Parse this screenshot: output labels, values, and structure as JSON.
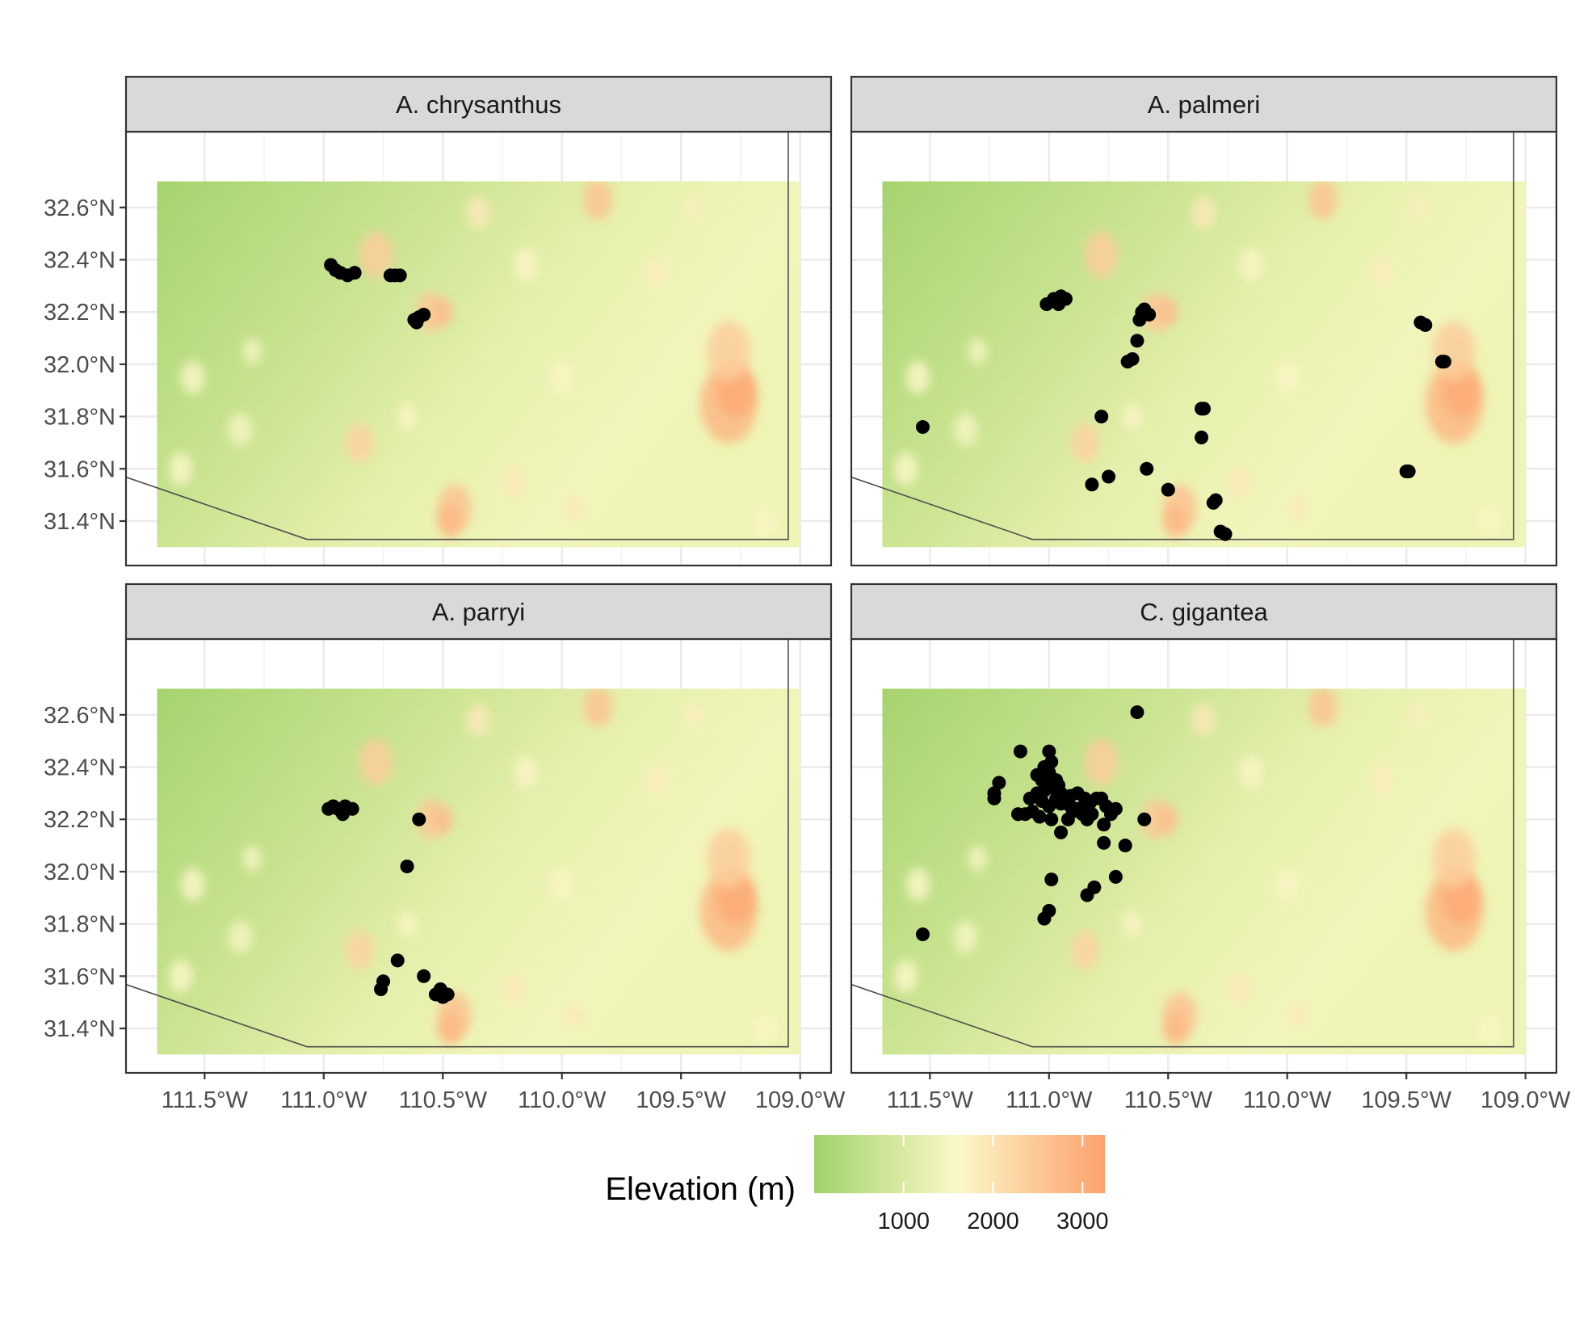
{
  "chart_data": {
    "type": "scatter",
    "layout": "facet_wrap 2x2",
    "x_axis": {
      "ticks": [
        -111.5,
        -111.0,
        -110.5,
        -110.0,
        -109.5,
        -109.0
      ],
      "tick_labels": [
        "111.5°W",
        "111.0°W",
        "110.5°W",
        "110.0°W",
        "109.5°W",
        "109.0°W"
      ],
      "lim": [
        -111.83,
        -108.87
      ]
    },
    "y_axis": {
      "ticks": [
        32.6,
        32.4,
        32.2,
        32.0,
        31.8,
        31.6,
        31.4
      ],
      "tick_labels": [
        "32.6°N",
        "32.4°N",
        "32.2°N",
        "32.0°N",
        "31.8°N",
        "31.6°N",
        "31.4°N"
      ],
      "lim": [
        31.23,
        32.89
      ]
    },
    "raster_extent": {
      "lon": [
        -111.7,
        -109.0
      ],
      "lat": [
        31.3,
        32.7
      ]
    },
    "border_line": [
      [
        -111.9,
        31.59
      ],
      [
        -111.07,
        31.33
      ],
      [
        -109.05,
        31.33
      ],
      [
        -109.05,
        32.89
      ]
    ],
    "relief": [
      {
        "lon": -110.78,
        "lat": 32.42,
        "r": 0.07,
        "elev": 2400
      },
      {
        "lon": -110.55,
        "lat": 32.2,
        "r": 0.06,
        "elev": 2500
      },
      {
        "lon": -110.5,
        "lat": 32.2,
        "r": 0.04,
        "elev": 2700
      },
      {
        "lon": -110.85,
        "lat": 31.7,
        "r": 0.06,
        "elev": 2300
      },
      {
        "lon": -110.45,
        "lat": 31.45,
        "r": 0.07,
        "elev": 2600
      },
      {
        "lon": -110.47,
        "lat": 31.4,
        "r": 0.05,
        "elev": 2800
      },
      {
        "lon": -109.3,
        "lat": 31.85,
        "r": 0.12,
        "elev": 2800
      },
      {
        "lon": -109.27,
        "lat": 31.9,
        "r": 0.08,
        "elev": 3100
      },
      {
        "lon": -109.3,
        "lat": 32.05,
        "r": 0.09,
        "elev": 2400
      },
      {
        "lon": -109.85,
        "lat": 32.63,
        "r": 0.06,
        "elev": 2600
      },
      {
        "lon": -110.35,
        "lat": 32.58,
        "r": 0.05,
        "elev": 1900
      },
      {
        "lon": -110.15,
        "lat": 32.38,
        "r": 0.05,
        "elev": 1700
      },
      {
        "lon": -109.45,
        "lat": 32.6,
        "r": 0.04,
        "elev": 1800
      },
      {
        "lon": -109.6,
        "lat": 32.35,
        "r": 0.05,
        "elev": 1800
      },
      {
        "lon": -110.0,
        "lat": 31.95,
        "r": 0.05,
        "elev": 1700
      },
      {
        "lon": -110.2,
        "lat": 31.55,
        "r": 0.05,
        "elev": 1900
      },
      {
        "lon": -109.95,
        "lat": 31.45,
        "r": 0.04,
        "elev": 1900
      },
      {
        "lon": -111.55,
        "lat": 31.95,
        "r": 0.05,
        "elev": 1600
      },
      {
        "lon": -111.6,
        "lat": 31.6,
        "r": 0.05,
        "elev": 1600
      },
      {
        "lon": -110.65,
        "lat": 31.8,
        "r": 0.04,
        "elev": 1700
      },
      {
        "lon": -111.3,
        "lat": 32.05,
        "r": 0.04,
        "elev": 1500
      },
      {
        "lon": -111.35,
        "lat": 31.75,
        "r": 0.05,
        "elev": 1500
      },
      {
        "lon": -109.15,
        "lat": 31.4,
        "r": 0.05,
        "elev": 1700
      }
    ],
    "facets": [
      {
        "label": "A. chrysanthus",
        "points": [
          [
            -110.97,
            32.38
          ],
          [
            -110.95,
            32.36
          ],
          [
            -110.93,
            32.35
          ],
          [
            -110.9,
            32.34
          ],
          [
            -110.87,
            32.35
          ],
          [
            -110.72,
            32.34
          ],
          [
            -110.7,
            32.34
          ],
          [
            -110.68,
            32.34
          ],
          [
            -110.62,
            32.17
          ],
          [
            -110.6,
            32.18
          ],
          [
            -110.58,
            32.19
          ],
          [
            -110.61,
            32.16
          ]
        ]
      },
      {
        "label": "A. palmeri",
        "points": [
          [
            -111.53,
            31.76
          ],
          [
            -111.01,
            32.23
          ],
          [
            -110.98,
            32.25
          ],
          [
            -110.96,
            32.23
          ],
          [
            -110.95,
            32.26
          ],
          [
            -110.93,
            32.25
          ],
          [
            -110.6,
            32.21
          ],
          [
            -110.58,
            32.19
          ],
          [
            -110.62,
            32.17
          ],
          [
            -110.61,
            32.2
          ],
          [
            -110.63,
            32.09
          ],
          [
            -110.65,
            32.02
          ],
          [
            -110.67,
            32.01
          ],
          [
            -110.78,
            31.8
          ],
          [
            -110.36,
            31.83
          ],
          [
            -110.35,
            31.83
          ],
          [
            -110.36,
            31.72
          ],
          [
            -110.82,
            31.54
          ],
          [
            -110.75,
            31.57
          ],
          [
            -110.59,
            31.6
          ],
          [
            -110.5,
            31.52
          ],
          [
            -110.31,
            31.47
          ],
          [
            -110.3,
            31.48
          ],
          [
            -110.28,
            31.36
          ],
          [
            -110.26,
            31.35
          ],
          [
            -109.44,
            32.16
          ],
          [
            -109.42,
            32.15
          ],
          [
            -109.35,
            32.01
          ],
          [
            -109.34,
            32.01
          ],
          [
            -109.5,
            31.59
          ],
          [
            -109.49,
            31.59
          ]
        ]
      },
      {
        "label": "A. parryi",
        "points": [
          [
            -110.98,
            32.24
          ],
          [
            -110.96,
            32.25
          ],
          [
            -110.94,
            32.24
          ],
          [
            -110.92,
            32.22
          ],
          [
            -110.91,
            32.25
          ],
          [
            -110.88,
            32.24
          ],
          [
            -110.6,
            32.2
          ],
          [
            -110.65,
            32.02
          ],
          [
            -110.69,
            31.66
          ],
          [
            -110.75,
            31.58
          ],
          [
            -110.76,
            31.55
          ],
          [
            -110.58,
            31.6
          ],
          [
            -110.53,
            31.53
          ],
          [
            -110.51,
            31.55
          ],
          [
            -110.5,
            31.52
          ],
          [
            -110.48,
            31.53
          ]
        ]
      },
      {
        "label": "C. gigantea",
        "points": [
          [
            -111.53,
            31.76
          ],
          [
            -110.63,
            32.61
          ],
          [
            -111.12,
            32.46
          ],
          [
            -111.0,
            32.46
          ],
          [
            -111.23,
            32.3
          ],
          [
            -111.21,
            32.34
          ],
          [
            -111.23,
            32.28
          ],
          [
            -111.13,
            32.22
          ],
          [
            -111.1,
            32.22
          ],
          [
            -111.08,
            32.28
          ],
          [
            -111.05,
            32.3
          ],
          [
            -111.03,
            32.27
          ],
          [
            -111.02,
            32.4
          ],
          [
            -111.0,
            32.38
          ],
          [
            -110.99,
            32.42
          ],
          [
            -110.97,
            32.35
          ],
          [
            -110.96,
            32.33
          ],
          [
            -110.95,
            32.3
          ],
          [
            -110.98,
            32.32
          ],
          [
            -111.0,
            32.33
          ],
          [
            -110.97,
            32.28
          ],
          [
            -110.95,
            32.26
          ],
          [
            -110.93,
            32.28
          ],
          [
            -110.91,
            32.25
          ],
          [
            -110.9,
            32.23
          ],
          [
            -110.88,
            32.24
          ],
          [
            -110.85,
            32.28
          ],
          [
            -110.83,
            32.26
          ],
          [
            -110.8,
            32.28
          ],
          [
            -110.78,
            32.28
          ],
          [
            -110.76,
            32.25
          ],
          [
            -110.74,
            32.22
          ],
          [
            -110.72,
            32.24
          ],
          [
            -110.84,
            32.2
          ],
          [
            -110.82,
            32.22
          ],
          [
            -110.77,
            32.18
          ],
          [
            -110.6,
            32.2
          ],
          [
            -110.68,
            32.1
          ],
          [
            -110.77,
            32.11
          ],
          [
            -110.95,
            32.15
          ],
          [
            -111.04,
            32.21
          ],
          [
            -110.99,
            32.2
          ],
          [
            -111.0,
            32.25
          ],
          [
            -111.03,
            32.35
          ],
          [
            -111.05,
            32.37
          ],
          [
            -111.02,
            32.31
          ],
          [
            -111.07,
            32.23
          ],
          [
            -110.91,
            32.29
          ],
          [
            -110.88,
            32.3
          ],
          [
            -110.86,
            32.22
          ],
          [
            -110.92,
            32.2
          ],
          [
            -110.99,
            31.97
          ],
          [
            -110.72,
            31.98
          ],
          [
            -110.81,
            31.94
          ],
          [
            -110.84,
            31.91
          ],
          [
            -111.0,
            31.85
          ],
          [
            -111.02,
            31.82
          ]
        ]
      }
    ],
    "legend": {
      "title": "Elevation (m)",
      "placement": "bottom",
      "breaks": [
        1000,
        2000,
        3000
      ],
      "break_labels": [
        "1000",
        "2000",
        "3000"
      ],
      "range": [
        0,
        3250
      ],
      "colors": {
        "low": "#a2d16b",
        "mid_low": "#cfe69a",
        "mid": "#fbf8c8",
        "mid_high": "#fccb9a",
        "high": "#fca26b"
      }
    },
    "point_color": "#000000"
  }
}
